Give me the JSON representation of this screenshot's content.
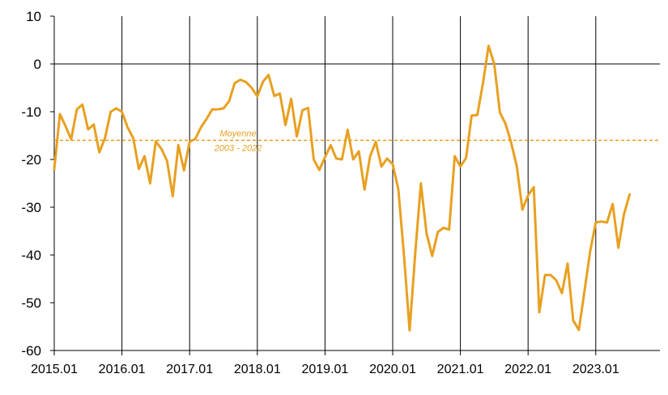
{
  "chart_data": {
    "type": "line",
    "title": "",
    "xlabel": "",
    "ylabel": "",
    "ylim": [
      -60,
      10
    ],
    "yticks": [
      10,
      0,
      -10,
      -20,
      -30,
      -40,
      -50,
      -60
    ],
    "xtick_labels": [
      "2015.01",
      "2016.01",
      "2017.01",
      "2018.01",
      "2019.01",
      "2020.01",
      "2021.01",
      "2022.01",
      "2023.01"
    ],
    "x_start": "2015.01",
    "grid": "vertical lines at each year",
    "line_color": "#E8A020",
    "series": [
      {
        "name": "",
        "values": [
          -22,
          -10.5,
          -13,
          -15.8,
          -9.5,
          -8.5,
          -13.7,
          -12.7,
          -18.5,
          -15.5,
          -10,
          -9.3,
          -10,
          -13.3,
          -15.5,
          -22,
          -19.3,
          -25,
          -16.2,
          -17.8,
          -20.3,
          -27.7,
          -17,
          -22.3,
          -16.3,
          -15.7,
          -13.3,
          -11.5,
          -9.5,
          -9.5,
          -9.3,
          -7.8,
          -4,
          -3.3,
          -3.8,
          -5,
          -6.8,
          -3.7,
          -2.3,
          -6.7,
          -6.2,
          -12.8,
          -7.3,
          -15.2,
          -9.7,
          -9.2,
          -20,
          -22.2,
          -19.5,
          -17,
          -19.8,
          -20,
          -13.8,
          -20,
          -18.3,
          -26.3,
          -19.3,
          -16.3,
          -21.5,
          -19.8,
          -21,
          -26.3,
          -40,
          -55.8,
          -39.5,
          -25,
          -35.5,
          -40.2,
          -35.2,
          -34.3,
          -34.7,
          -19.3,
          -21.5,
          -19.7,
          -10.8,
          -10.7,
          -4,
          3.8,
          0,
          -10.2,
          -12.5,
          -16.5,
          -21.5,
          -30.5,
          -27.5,
          -25.8,
          -52,
          -44.2,
          -44.2,
          -45.3,
          -48,
          -41.8,
          -53.7,
          -55.7,
          -47.5,
          -39.3,
          -33.2,
          -33,
          -33.2,
          -29.3,
          -38.5,
          -31.5,
          -27.3
        ]
      }
    ],
    "reference_line": {
      "value": -16,
      "label_line1": "Moyenne",
      "label_line2": "2003 - 2022",
      "style": "dashed"
    }
  }
}
